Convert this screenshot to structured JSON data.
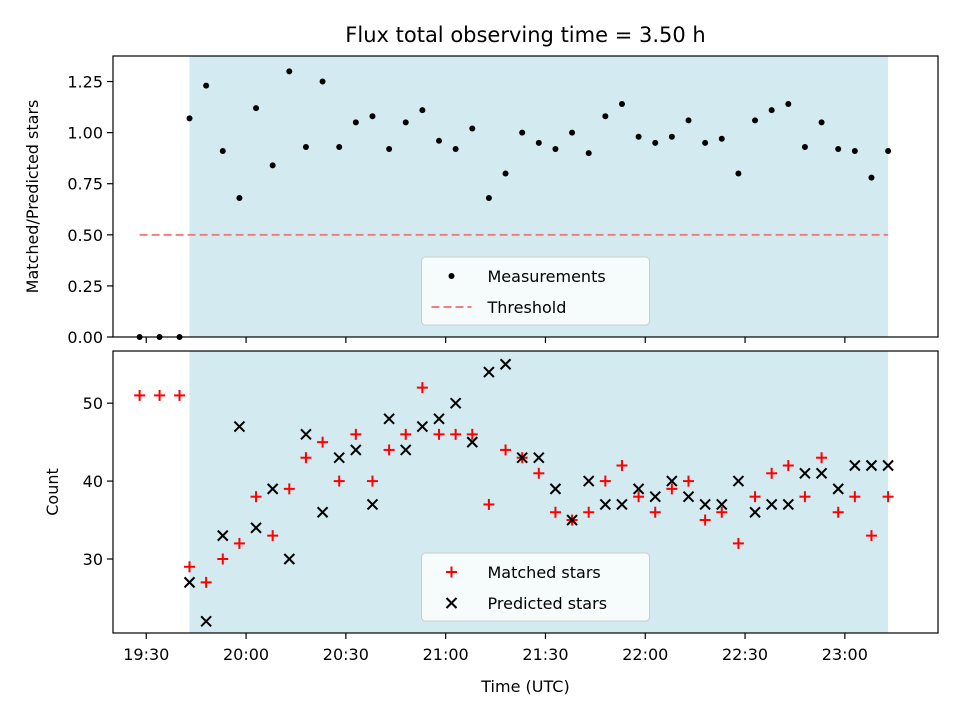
{
  "chart_data": [
    {
      "type": "scatter",
      "title": "Flux total observing time = 3.50 h",
      "xlabel": "",
      "ylabel": "Matched/Predicted stars",
      "ylim": [
        0.0,
        1.375
      ],
      "xlim": [
        "19:20",
        "23:28"
      ],
      "yticks": [
        "0.00",
        "0.25",
        "0.50",
        "0.75",
        "1.00",
        "1.25"
      ],
      "shaded_region": [
        "19:43",
        "23:13"
      ],
      "shaded_color": "#d3eaf1",
      "legend": {
        "placement": "bottom-center",
        "entries": [
          "Measurements",
          "Threshold"
        ]
      },
      "series": [
        {
          "name": "Measurements",
          "marker": "dot",
          "color": "#000000",
          "x": [
            "19:28",
            "19:34",
            "19:40",
            "19:43",
            "19:48",
            "19:53",
            "19:58",
            "20:03",
            "20:08",
            "20:13",
            "20:18",
            "20:23",
            "20:28",
            "20:33",
            "20:38",
            "20:43",
            "20:48",
            "20:53",
            "20:58",
            "21:03",
            "21:08",
            "21:13",
            "21:18",
            "21:23",
            "21:28",
            "21:33",
            "21:38",
            "21:43",
            "21:48",
            "21:53",
            "21:58",
            "22:03",
            "22:08",
            "22:13",
            "22:18",
            "22:23",
            "22:28",
            "22:33",
            "22:38",
            "22:43",
            "22:48",
            "22:53",
            "22:58",
            "23:03",
            "23:08",
            "23:13"
          ],
          "y": [
            0.0,
            0.0,
            0.0,
            1.07,
            1.23,
            0.91,
            0.68,
            1.12,
            0.84,
            1.3,
            0.93,
            1.25,
            0.93,
            1.05,
            1.08,
            0.92,
            1.05,
            1.11,
            0.96,
            0.92,
            1.02,
            0.68,
            0.8,
            1.0,
            0.95,
            0.92,
            1.0,
            0.9,
            1.08,
            1.14,
            0.98,
            0.95,
            0.98,
            1.06,
            0.95,
            0.97,
            0.8,
            1.06,
            1.11,
            1.14,
            0.93,
            1.05,
            0.92,
            0.91,
            0.78,
            0.91
          ]
        },
        {
          "name": "Threshold",
          "marker": "dashed-line",
          "color": "#f08080",
          "x": [
            "19:28",
            "23:13"
          ],
          "y": [
            0.5,
            0.5
          ]
        }
      ]
    },
    {
      "type": "scatter",
      "title": "",
      "xlabel": "Time (UTC)",
      "ylabel": "Count",
      "ylim": [
        20.5,
        56.7
      ],
      "xlim": [
        "19:20",
        "23:28"
      ],
      "yticks": [
        "30",
        "40",
        "50"
      ],
      "xticks": [
        "19:30",
        "20:00",
        "20:30",
        "21:00",
        "21:30",
        "22:00",
        "22:30",
        "23:00"
      ],
      "shaded_region": [
        "19:43",
        "23:13"
      ],
      "shaded_color": "#d3eaf1",
      "legend": {
        "placement": "bottom-center",
        "entries": [
          "Matched stars",
          "Predicted stars"
        ]
      },
      "series": [
        {
          "name": "Matched stars",
          "marker": "plus",
          "color": "#ff0000",
          "x": [
            "19:28",
            "19:34",
            "19:40",
            "19:43",
            "19:48",
            "19:53",
            "19:58",
            "20:03",
            "20:08",
            "20:13",
            "20:18",
            "20:23",
            "20:28",
            "20:33",
            "20:38",
            "20:43",
            "20:48",
            "20:53",
            "20:58",
            "21:03",
            "21:08",
            "21:13",
            "21:18",
            "21:23",
            "21:28",
            "21:33",
            "21:38",
            "21:43",
            "21:48",
            "21:53",
            "21:58",
            "22:03",
            "22:08",
            "22:13",
            "22:18",
            "22:23",
            "22:28",
            "22:33",
            "22:38",
            "22:43",
            "22:48",
            "22:53",
            "22:58",
            "23:03",
            "23:08",
            "23:13"
          ],
          "y": [
            51,
            51,
            51,
            29,
            27,
            30,
            32,
            38,
            33,
            39,
            43,
            45,
            40,
            46,
            40,
            44,
            46,
            52,
            46,
            46,
            46,
            37,
            44,
            43,
            41,
            36,
            35,
            36,
            40,
            42,
            38,
            36,
            39,
            40,
            35,
            36,
            32,
            38,
            41,
            42,
            38,
            43,
            36,
            38,
            33,
            38
          ]
        },
        {
          "name": "Predicted stars",
          "marker": "x",
          "color": "#000000",
          "x": [
            "19:43",
            "19:48",
            "19:53",
            "19:58",
            "20:03",
            "20:08",
            "20:13",
            "20:18",
            "20:23",
            "20:28",
            "20:33",
            "20:38",
            "20:43",
            "20:48",
            "20:53",
            "20:58",
            "21:03",
            "21:08",
            "21:13",
            "21:18",
            "21:23",
            "21:28",
            "21:33",
            "21:38",
            "21:43",
            "21:48",
            "21:53",
            "21:58",
            "22:03",
            "22:08",
            "22:13",
            "22:18",
            "22:23",
            "22:28",
            "22:33",
            "22:38",
            "22:43",
            "22:48",
            "22:53",
            "22:58",
            "23:03",
            "23:08",
            "23:13"
          ],
          "y": [
            27,
            22,
            33,
            47,
            34,
            39,
            30,
            46,
            36,
            43,
            44,
            37,
            48,
            44,
            47,
            48,
            50,
            45,
            54,
            55,
            43,
            43,
            39,
            35,
            40,
            37,
            37,
            39,
            38,
            40,
            38,
            37,
            37,
            40,
            36,
            37,
            37,
            41,
            41,
            39,
            42,
            42,
            42
          ]
        }
      ]
    }
  ]
}
